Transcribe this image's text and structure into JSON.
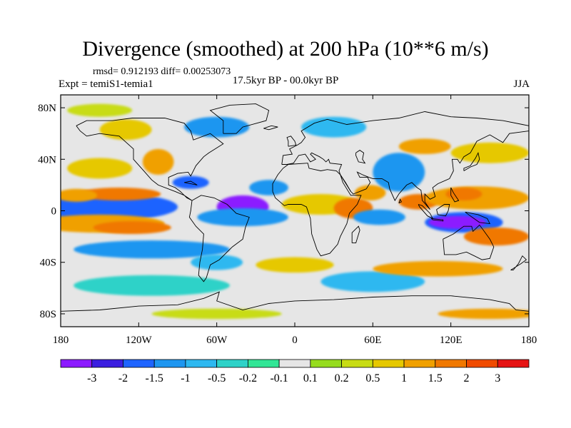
{
  "title": "Divergence (smoothed) at 200 hPa (10**6 m/s)",
  "stats_text": "rmsd= 0.912193 diff= 0.00253073",
  "left_label": "Expt = temiS1-temia1",
  "center_label": "17.5kyr BP - 00.0kyr BP",
  "right_label": "JJA",
  "lat_ticks": [
    {
      "value": 80,
      "label": "80N"
    },
    {
      "value": 40,
      "label": "40N"
    },
    {
      "value": 0,
      "label": "0"
    },
    {
      "value": -40,
      "label": "40S"
    },
    {
      "value": -80,
      "label": "80S"
    }
  ],
  "lon_ticks": [
    {
      "value": -180,
      "label": "180"
    },
    {
      "value": -120,
      "label": "120W"
    },
    {
      "value": -60,
      "label": "60W"
    },
    {
      "value": 0,
      "label": "0"
    },
    {
      "value": 60,
      "label": "60E"
    },
    {
      "value": 120,
      "label": "120E"
    },
    {
      "value": 180,
      "label": "180"
    }
  ],
  "colorbar": {
    "colors": [
      "#8c1aff",
      "#3b1ee0",
      "#1e64ff",
      "#1e96f0",
      "#2db8f0",
      "#2ed2c8",
      "#32e696",
      "#e6e6e6",
      "#96dc1e",
      "#c8dc14",
      "#e6c800",
      "#f0a000",
      "#f07800",
      "#f04b00",
      "#e61414"
    ],
    "labels": [
      "-3",
      "-2",
      "-1.5",
      "-1",
      "-0.5",
      "-0.2",
      "-0.1",
      "0.1",
      "0.2",
      "0.5",
      "1",
      "1.5",
      "2",
      "3"
    ]
  },
  "field_blobs": [
    {
      "lon": -145,
      "lat": 2,
      "rlon": 40,
      "rlat": 7,
      "level": 0
    },
    {
      "lon": -150,
      "lat": 3,
      "rlon": 60,
      "rlat": 11,
      "level": 2
    },
    {
      "lon": -135,
      "lat": 13,
      "rlon": 32,
      "rlat": 5,
      "level": 12
    },
    {
      "lon": -168,
      "lat": 12,
      "rlon": 16,
      "rlat": 5,
      "level": 11
    },
    {
      "lon": -150,
      "lat": -10,
      "rlon": 50,
      "rlat": 7,
      "level": 11
    },
    {
      "lon": -125,
      "lat": -13,
      "rlon": 30,
      "rlat": 5,
      "level": 12
    },
    {
      "lon": -110,
      "lat": -30,
      "rlon": 60,
      "rlat": 7,
      "level": 3
    },
    {
      "lon": -150,
      "lat": 33,
      "rlon": 25,
      "rlat": 8,
      "level": 10
    },
    {
      "lon": -105,
      "lat": 38,
      "rlon": 12,
      "rlat": 10,
      "level": 11
    },
    {
      "lon": -80,
      "lat": 22,
      "rlon": 14,
      "rlat": 5,
      "level": 2
    },
    {
      "lon": -40,
      "lat": 3,
      "rlon": 20,
      "rlat": 9,
      "level": 0
    },
    {
      "lon": -40,
      "lat": -5,
      "rlon": 35,
      "rlat": 7,
      "level": 3
    },
    {
      "lon": -20,
      "lat": 18,
      "rlon": 15,
      "rlat": 6,
      "level": 3
    },
    {
      "lon": 20,
      "lat": 5,
      "rlon": 30,
      "rlat": 8,
      "level": 10
    },
    {
      "lon": 45,
      "lat": 2,
      "rlon": 15,
      "rlat": 8,
      "level": 12
    },
    {
      "lon": 58,
      "lat": 14,
      "rlon": 12,
      "rlat": 6,
      "level": 11
    },
    {
      "lon": 65,
      "lat": -5,
      "rlon": 20,
      "rlat": 6,
      "level": 3
    },
    {
      "lon": 80,
      "lat": 30,
      "rlon": 20,
      "rlat": 15,
      "level": 3
    },
    {
      "lon": 95,
      "lat": 7,
      "rlon": 15,
      "rlat": 6,
      "level": 12
    },
    {
      "lon": 140,
      "lat": 10,
      "rlon": 40,
      "rlat": 9,
      "level": 11
    },
    {
      "lon": 130,
      "lat": 13,
      "rlon": 14,
      "rlat": 5,
      "level": 12
    },
    {
      "lon": 130,
      "lat": -9,
      "rlon": 30,
      "rlat": 8,
      "level": 2
    },
    {
      "lon": 125,
      "lat": -9,
      "rlon": 22,
      "rlat": 5,
      "level": 0
    },
    {
      "lon": 155,
      "lat": -20,
      "rlon": 25,
      "rlat": 7,
      "level": 12
    },
    {
      "lon": 150,
      "lat": 45,
      "rlon": 30,
      "rlat": 8,
      "level": 10
    },
    {
      "lon": 100,
      "lat": 50,
      "rlon": 20,
      "rlat": 6,
      "level": 11
    },
    {
      "lon": -130,
      "lat": 63,
      "rlon": 20,
      "rlat": 8,
      "level": 10
    },
    {
      "lon": -60,
      "lat": 65,
      "rlon": 25,
      "rlat": 8,
      "level": 3
    },
    {
      "lon": 30,
      "lat": 65,
      "rlon": 25,
      "rlat": 8,
      "level": 4
    },
    {
      "lon": -150,
      "lat": 78,
      "rlon": 25,
      "rlat": 5,
      "level": 9
    },
    {
      "lon": 0,
      "lat": -42,
      "rlon": 30,
      "rlat": 6,
      "level": 10
    },
    {
      "lon": 60,
      "lat": -55,
      "rlon": 40,
      "rlat": 8,
      "level": 4
    },
    {
      "lon": -110,
      "lat": -58,
      "rlon": 60,
      "rlat": 8,
      "level": 5
    },
    {
      "lon": -60,
      "lat": -40,
      "rlon": 20,
      "rlat": 6,
      "level": 4
    },
    {
      "lon": 110,
      "lat": -45,
      "rlon": 50,
      "rlat": 6,
      "level": 11
    },
    {
      "lon": -60,
      "lat": -80,
      "rlon": 50,
      "rlat": 4,
      "level": 9
    },
    {
      "lon": 150,
      "lat": -80,
      "rlon": 40,
      "rlat": 4,
      "level": 11
    }
  ]
}
